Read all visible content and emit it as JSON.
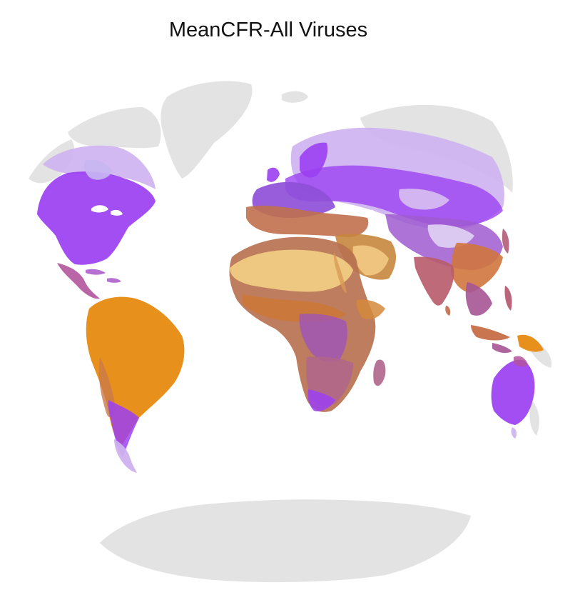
{
  "title": "MeanCFR-All Viruses",
  "colors": {
    "land": "#e3e3e3",
    "low": "#9b3ff2",
    "mid": "#b9649c",
    "high": "#e8901c",
    "desert": "#f0cc82",
    "pale_low": "#cdb1ef"
  }
}
